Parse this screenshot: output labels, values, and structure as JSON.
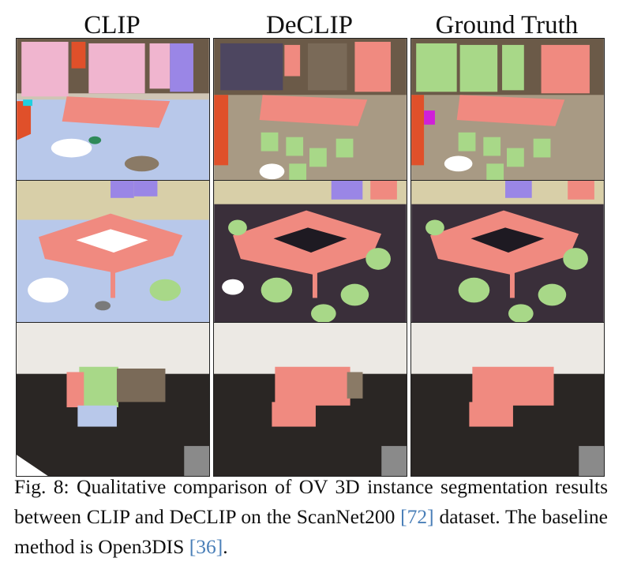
{
  "columns": [
    "CLIP",
    "DeCLIP",
    "Ground Truth"
  ],
  "caption": {
    "label": "Fig. 8:",
    "text_1": "Qualitative comparison of OV 3D instance segmentation results between CLIP and DeCLIP on the ScanNet200 ",
    "ref_1": "[72]",
    "text_2": " dataset. The baseline method is Open3DIS ",
    "ref_2": "[36]",
    "text_3": "."
  },
  "colors": {
    "pink": "#f0b5cf",
    "salmon": "#f08a80",
    "green": "#a8d888",
    "light_blue": "#b8c8ea",
    "purple": "#9a86e6",
    "orange_red": "#e0502a",
    "magenta": "#d020d8",
    "dark_floor": "#2a2624",
    "wall_beige": "#d8cfa8",
    "wall_white": "#ece9e4",
    "link": "#4a7fb8"
  }
}
